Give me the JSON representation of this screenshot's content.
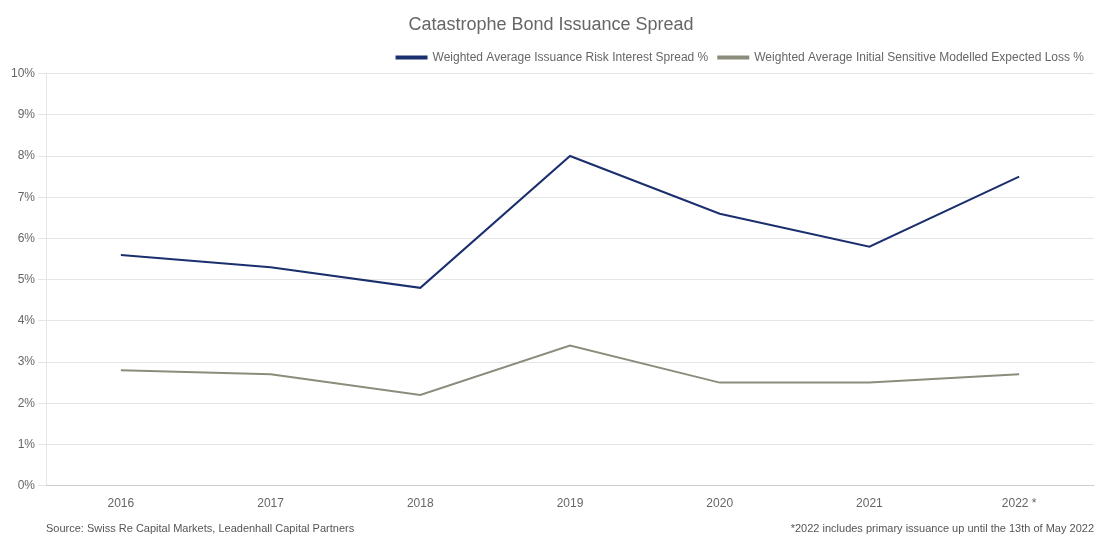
{
  "chart_data": {
    "type": "line",
    "title": "Catastrophe Bond Issuance Spread",
    "categories": [
      "2016",
      "2017",
      "2018",
      "2019",
      "2020",
      "2021",
      "2022 *"
    ],
    "series": [
      {
        "name": "Weighted Average Issuance Risk Interest Spread %",
        "color": "#1b2f6e",
        "values": [
          0.056,
          0.053,
          0.048,
          0.08,
          0.066,
          0.058,
          0.075
        ]
      },
      {
        "name": "Weighted Average Initial Sensitive Modelled Expected Loss %",
        "color": "#8c8c7c",
        "values": [
          0.028,
          0.027,
          0.022,
          0.034,
          0.025,
          0.025,
          0.027
        ]
      }
    ],
    "ylim": [
      0,
      0.1
    ],
    "yticks": [
      {
        "value": 0.0,
        "label": "0%"
      },
      {
        "value": 0.01,
        "label": "1%"
      },
      {
        "value": 0.02,
        "label": "2%"
      },
      {
        "value": 0.03,
        "label": "3%"
      },
      {
        "value": 0.04,
        "label": "4%"
      },
      {
        "value": 0.05,
        "label": "5%"
      },
      {
        "value": 0.06,
        "label": "6%"
      },
      {
        "value": 0.07,
        "label": "7%"
      },
      {
        "value": 0.08,
        "label": "8%"
      },
      {
        "value": 0.09,
        "label": "9%"
      },
      {
        "value": 0.1,
        "label": "10%"
      }
    ],
    "grid": true,
    "legend": "upper right",
    "annotations": [
      "Source: Swiss Re Capital Markets, Leadenhall Capital Partners",
      "*2022 includes primary issuance up until the 13th of May 2022"
    ]
  }
}
